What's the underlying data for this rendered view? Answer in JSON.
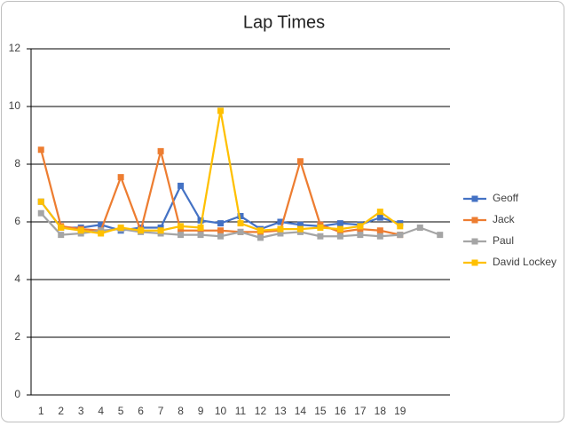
{
  "chart_data": {
    "type": "line",
    "title": "Lap Times",
    "categories": [
      "1",
      "2",
      "3",
      "4",
      "5",
      "6",
      "7",
      "8",
      "9",
      "10",
      "11",
      "12",
      "13",
      "14",
      "15",
      "16",
      "17",
      "18",
      "19",
      null,
      null
    ],
    "series": [
      {
        "name": "Geoff",
        "color": "#4472c4",
        "values": [
          6.7,
          5.8,
          5.8,
          5.9,
          5.7,
          5.8,
          5.8,
          7.25,
          6.05,
          5.95,
          6.2,
          5.75,
          6.0,
          5.9,
          5.85,
          5.95,
          5.9,
          6.15,
          5.95,
          null,
          null
        ]
      },
      {
        "name": "Jack",
        "color": "#ed7d31",
        "values": [
          8.5,
          5.85,
          5.75,
          5.7,
          7.55,
          5.7,
          8.45,
          5.7,
          5.7,
          5.7,
          5.65,
          5.65,
          5.7,
          8.1,
          5.9,
          5.65,
          5.75,
          5.7,
          5.55,
          null,
          null
        ]
      },
      {
        "name": "Paul",
        "color": "#a5a5a5",
        "values": [
          6.3,
          5.55,
          5.6,
          5.7,
          5.75,
          5.65,
          5.6,
          5.55,
          5.55,
          5.5,
          5.65,
          5.45,
          5.6,
          5.65,
          5.5,
          5.5,
          5.55,
          5.5,
          5.55,
          5.8,
          5.55
        ]
      },
      {
        "name": "David Lockey",
        "color": "#ffc000",
        "values": [
          6.7,
          5.8,
          5.7,
          5.6,
          5.8,
          5.7,
          5.7,
          5.85,
          5.8,
          9.85,
          5.95,
          5.7,
          5.75,
          5.75,
          5.8,
          5.75,
          5.85,
          6.35,
          5.85,
          null,
          null
        ]
      }
    ],
    "ylim": [
      0,
      12
    ],
    "yticks": [
      0,
      2,
      4,
      6,
      8,
      10,
      12
    ],
    "grid": true,
    "legend": "right"
  }
}
